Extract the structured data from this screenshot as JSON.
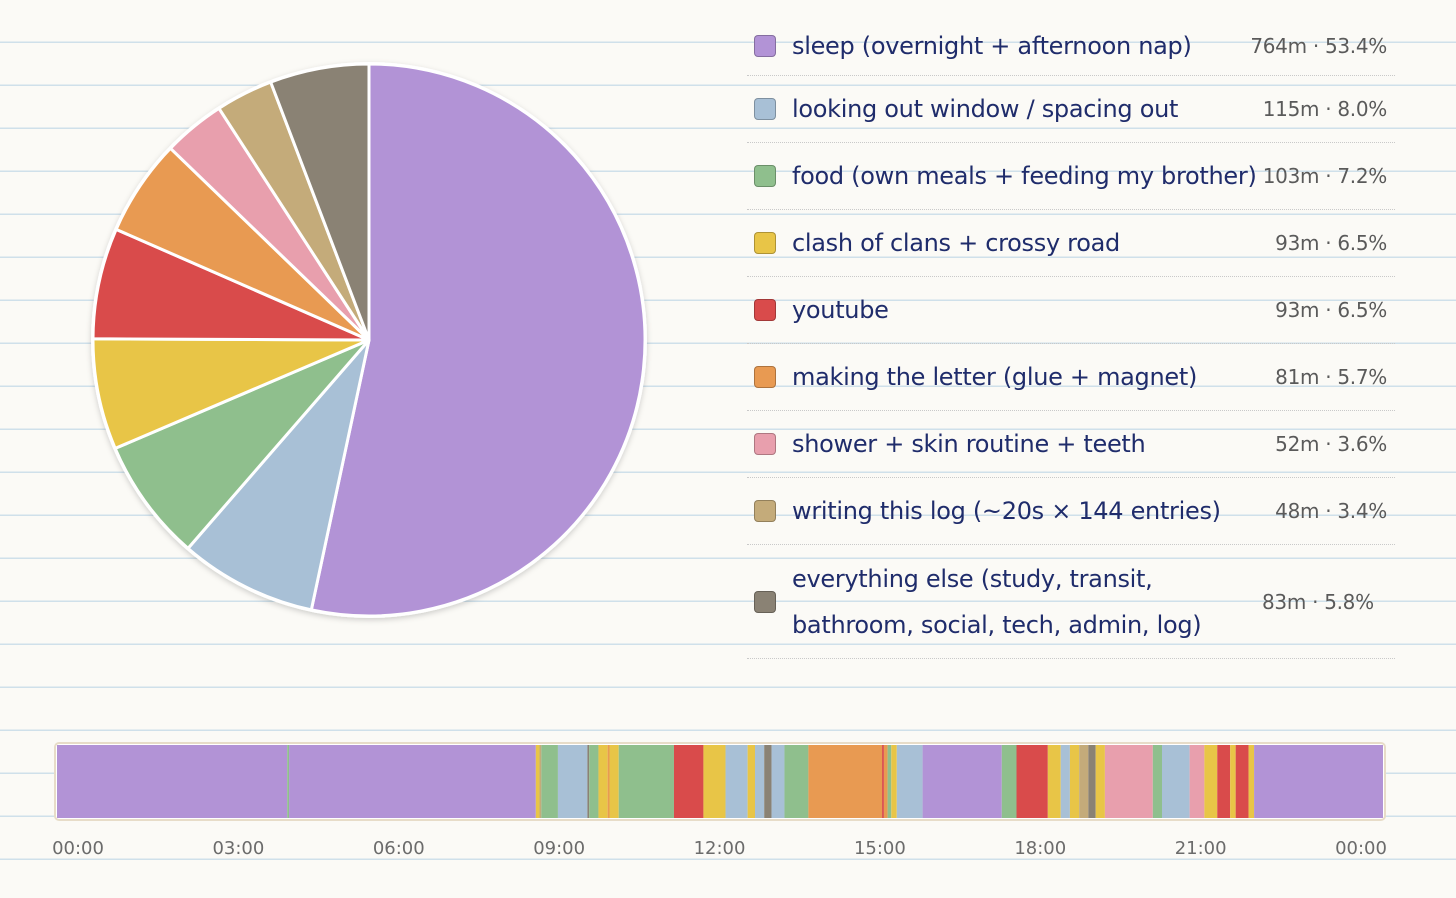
{
  "chart_data": [
    {
      "type": "pie",
      "slices": [
        {
          "label": "sleep (overnight + afternoon nap)",
          "minutes": 764,
          "percent": 53.4,
          "value_text": "764m · 53.4%",
          "color": "#b293d6"
        },
        {
          "label": "looking out window / spacing out",
          "minutes": 115,
          "percent": 8.0,
          "value_text": "115m · 8.0%",
          "color": "#a8c0d6"
        },
        {
          "label": "food (own meals + feeding my brother)",
          "minutes": 103,
          "percent": 7.2,
          "value_text": "103m · 7.2%",
          "color": "#8fbf8d"
        },
        {
          "label": "clash of clans + crossy road",
          "minutes": 93,
          "percent": 6.5,
          "value_text": "93m · 6.5%",
          "color": "#e8c547"
        },
        {
          "label": "youtube",
          "minutes": 93,
          "percent": 6.5,
          "value_text": "93m · 6.5%",
          "color": "#d94b4b"
        },
        {
          "label": "making the letter (glue + magnet)",
          "minutes": 81,
          "percent": 5.7,
          "value_text": "81m · 5.7%",
          "color": "#e89a52"
        },
        {
          "label": "shower + skin routine + teeth",
          "minutes": 52,
          "percent": 3.6,
          "value_text": "52m · 3.6%",
          "color": "#e89fad"
        },
        {
          "label": "writing this log (~20s × 144 entries)",
          "minutes": 48,
          "percent": 3.4,
          "value_text": "48m · 3.4%",
          "color": "#c4ab7a"
        },
        {
          "label": "everything else (study, transit, bathroom, social, tech, admin, log)",
          "minutes": 83,
          "percent": 5.8,
          "value_text": "83m · 5.8%",
          "color": "#8a8274"
        }
      ]
    },
    {
      "type": "timeline",
      "x_ticks": [
        "00:00",
        "03:00",
        "06:00",
        "09:00",
        "12:00",
        "15:00",
        "18:00",
        "21:00",
        "00:00"
      ],
      "segments": [
        {
          "category": "sleep (overnight + afternoon nap)",
          "start": "00:00",
          "end": "04:10"
        },
        {
          "category": "food (own meals + feeding my brother)",
          "start": "04:10",
          "end": "04:12"
        },
        {
          "category": "sleep (overnight + afternoon nap)",
          "start": "04:12",
          "end": "08:40"
        },
        {
          "category": "clash of clans + crossy road",
          "start": "08:40",
          "end": "08:44"
        },
        {
          "category": "writing this log (~20s × 144 entries)",
          "start": "08:44",
          "end": "08:46"
        },
        {
          "category": "food (own meals + feeding my brother)",
          "start": "08:46",
          "end": "09:04"
        },
        {
          "category": "looking out window / spacing out",
          "start": "09:04",
          "end": "09:36"
        },
        {
          "category": "everything else (study, transit, bathroom, social, tech, admin, log)",
          "start": "09:36",
          "end": "09:38"
        },
        {
          "category": "food (own meals + feeding my brother)",
          "start": "09:38",
          "end": "09:48"
        },
        {
          "category": "clash of clans + crossy road",
          "start": "09:48",
          "end": "09:58"
        },
        {
          "category": "making the letter (glue + magnet)",
          "start": "09:58",
          "end": "10:00"
        },
        {
          "category": "clash of clans + crossy road",
          "start": "10:00",
          "end": "10:10"
        },
        {
          "category": "food (own meals + feeding my brother)",
          "start": "10:10",
          "end": "11:10"
        },
        {
          "category": "youtube",
          "start": "11:10",
          "end": "11:42"
        },
        {
          "category": "clash of clans + crossy road",
          "start": "11:42",
          "end": "12:06"
        },
        {
          "category": "looking out window / spacing out",
          "start": "12:06",
          "end": "12:30"
        },
        {
          "category": "clash of clans + crossy road",
          "start": "12:30",
          "end": "12:38"
        },
        {
          "category": "looking out window / spacing out",
          "start": "12:38",
          "end": "12:48"
        },
        {
          "category": "everything else (study, transit, bathroom, social, tech, admin, log)",
          "start": "12:48",
          "end": "12:56"
        },
        {
          "category": "looking out window / spacing out",
          "start": "12:56",
          "end": "13:10"
        },
        {
          "category": "food (own meals + feeding my brother)",
          "start": "13:10",
          "end": "13:36"
        },
        {
          "category": "making the letter (glue + magnet)",
          "start": "13:36",
          "end": "14:56"
        },
        {
          "category": "youtube",
          "start": "14:56",
          "end": "14:58"
        },
        {
          "category": "making the letter (glue + magnet)",
          "start": "14:58",
          "end": "15:02"
        },
        {
          "category": "food (own meals + feeding my brother)",
          "start": "15:02",
          "end": "15:06"
        },
        {
          "category": "clash of clans + crossy road",
          "start": "15:06",
          "end": "15:12"
        },
        {
          "category": "looking out window / spacing out",
          "start": "15:12",
          "end": "15:40"
        },
        {
          "category": "sleep (overnight + afternoon nap)",
          "start": "15:40",
          "end": "17:06"
        },
        {
          "category": "food (own meals + feeding my brother)",
          "start": "17:06",
          "end": "17:22"
        },
        {
          "category": "youtube",
          "start": "17:22",
          "end": "17:56"
        },
        {
          "category": "clash of clans + crossy road",
          "start": "17:56",
          "end": "18:10"
        },
        {
          "category": "looking out window / spacing out",
          "start": "18:10",
          "end": "18:20"
        },
        {
          "category": "clash of clans + crossy road",
          "start": "18:20",
          "end": "18:30"
        },
        {
          "category": "writing this log (~20s × 144 entries)",
          "start": "18:30",
          "end": "18:40"
        },
        {
          "category": "everything else (study, transit, bathroom, social, tech, admin, log)",
          "start": "18:40",
          "end": "18:48"
        },
        {
          "category": "clash of clans + crossy road",
          "start": "18:48",
          "end": "18:58"
        },
        {
          "category": "shower + skin routine + teeth",
          "start": "18:58",
          "end": "19:50"
        },
        {
          "category": "food (own meals + feeding my brother)",
          "start": "19:50",
          "end": "20:00"
        },
        {
          "category": "looking out window / spacing out",
          "start": "20:00",
          "end": "20:30"
        },
        {
          "category": "shower + skin routine + teeth",
          "start": "20:30",
          "end": "20:46"
        },
        {
          "category": "clash of clans + crossy road",
          "start": "20:46",
          "end": "21:00"
        },
        {
          "category": "youtube",
          "start": "21:00",
          "end": "21:14"
        },
        {
          "category": "clash of clans + crossy road",
          "start": "21:14",
          "end": "21:20"
        },
        {
          "category": "youtube",
          "start": "21:20",
          "end": "21:34"
        },
        {
          "category": "clash of clans + crossy road",
          "start": "21:34",
          "end": "21:40"
        },
        {
          "category": "sleep (overnight + afternoon nap)",
          "start": "21:40",
          "end": "24:00"
        }
      ]
    }
  ]
}
